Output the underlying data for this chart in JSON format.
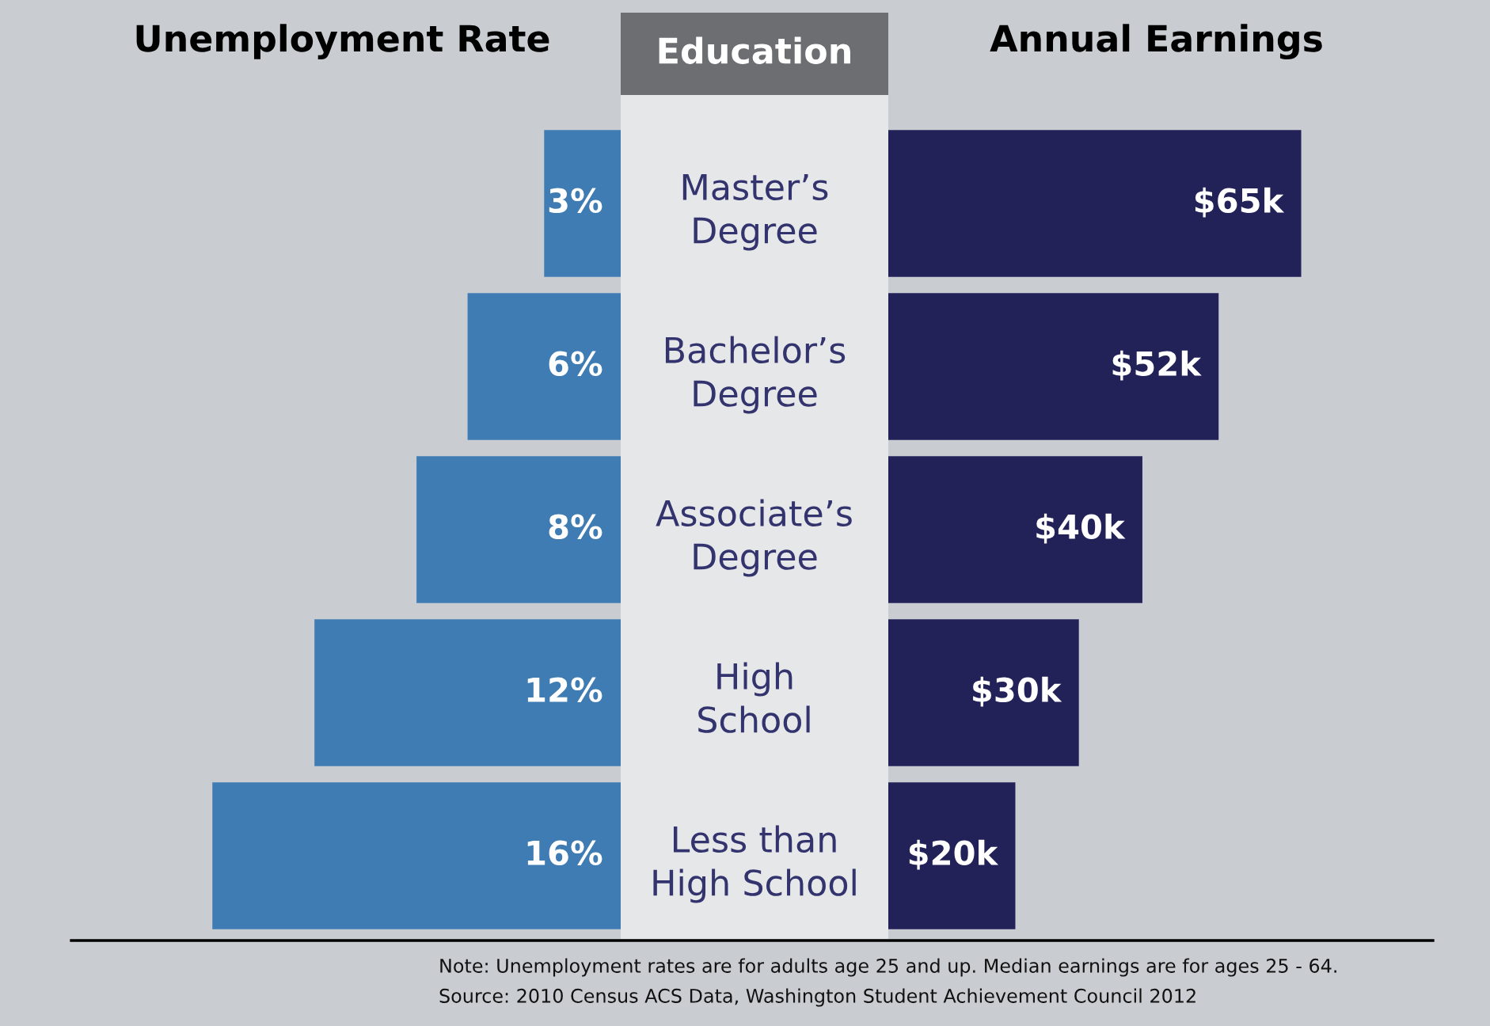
{
  "chart_data": [
    {
      "type": "bar",
      "orientation": "horizontal",
      "title": "Unemployment Rate",
      "ylabel": "Education",
      "categories": [
        "Master’s\nDegree",
        "Bachelor’s\nDegree",
        "Associate’s\nDegree",
        "High\nSchool",
        "Less than\nHigh School"
      ],
      "values": [
        3,
        6,
        8,
        12,
        16
      ],
      "color": "#3f7cb3",
      "value_labels": [
        "3%",
        "6%",
        "8%",
        "12%",
        "16%"
      ]
    },
    {
      "type": "bar",
      "orientation": "horizontal",
      "title": "Annual Earnings",
      "categories": [
        null,
        null,
        null,
        null,
        null
      ],
      "values": [
        65,
        52,
        40,
        30,
        20
      ],
      "color": "#232258",
      "value_labels": [
        "$65k",
        "$52k",
        "$40k",
        "$30k",
        "$20k"
      ],
      "annotations": [
        "Note: Unemployment rates are for adults age 25 and up. Median earnings are for ages 25 - 64.",
        "Source: 2010 Census ACS Data, Washington Student Achievement Council 2012"
      ]
    }
  ]
}
